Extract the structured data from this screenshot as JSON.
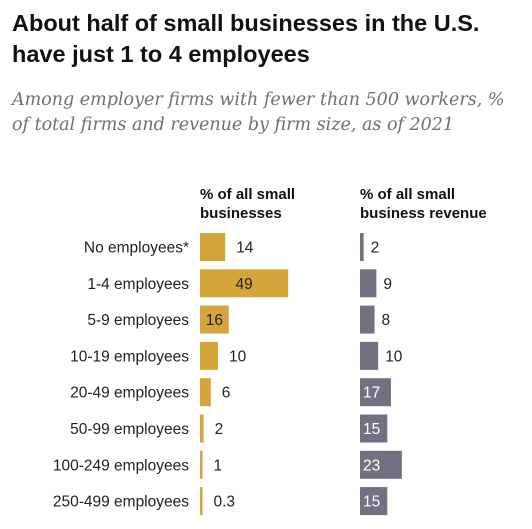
{
  "title": "About half of small businesses in the U.S. have just 1 to 4 employees",
  "subtitle": "Among employer firms with fewer than 500 workers, % of total firms and revenue by firm size, as of 2021",
  "colors": {
    "firms_bar": "#d4a53a",
    "revenue_bar": "#747081",
    "label_text": "#222222"
  },
  "chart_data": {
    "type": "bar",
    "categories": [
      "No employees*",
      "1-4 employees",
      "5-9 employees",
      "10-19 employees",
      "20-49 employees",
      "50-99 employees",
      "100-249 employees",
      "250-499 employees"
    ],
    "series": [
      {
        "name": "% of all small businesses",
        "values": [
          14,
          49,
          16,
          10,
          6,
          2,
          1,
          0.3
        ],
        "labels": [
          "14",
          "49",
          "16",
          "10",
          "6",
          "2",
          "1",
          "0.3"
        ]
      },
      {
        "name": "% of all small business revenue",
        "values": [
          2,
          9,
          8,
          10,
          17,
          15,
          23,
          15
        ],
        "labels": [
          "2",
          "9",
          "8",
          "10",
          "17",
          "15",
          "23",
          "15"
        ]
      }
    ]
  }
}
